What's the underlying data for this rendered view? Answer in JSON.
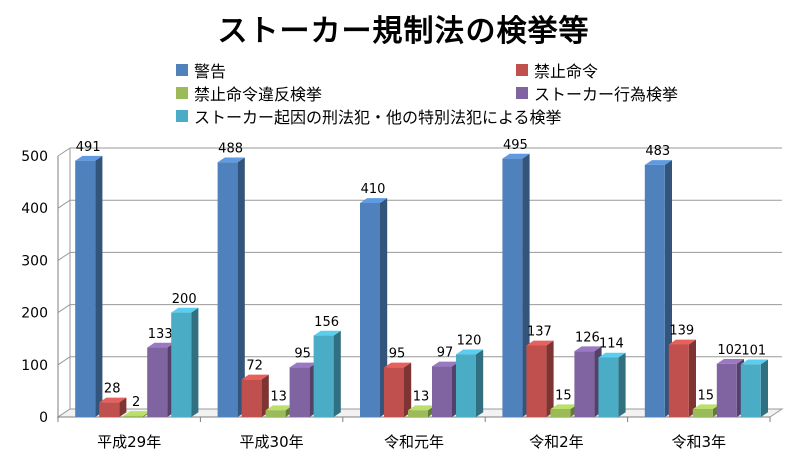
{
  "chart_data": {
    "type": "bar",
    "title": "ストーカー規制法の検挙等",
    "categories": [
      "平成29年",
      "平成30年",
      "令和元年",
      "令和2年",
      "令和3年"
    ],
    "series": [
      {
        "name": "警告",
        "color": "#4f81bd",
        "values": [
          491,
          488,
          410,
          495,
          483
        ]
      },
      {
        "name": "禁止命令",
        "color": "#c0504d",
        "values": [
          28,
          72,
          95,
          137,
          139
        ]
      },
      {
        "name": "禁止命令違反検挙",
        "color": "#9bbb59",
        "values": [
          2,
          13,
          13,
          15,
          15
        ]
      },
      {
        "name": "ストーカー行為検挙",
        "color": "#8064a2",
        "values": [
          133,
          95,
          97,
          126,
          102
        ]
      },
      {
        "name": "ストーカー起因の刑法犯・他の特別法犯による検挙",
        "color": "#4bacc6",
        "values": [
          200,
          156,
          120,
          114,
          101
        ]
      }
    ],
    "yticks": [
      0,
      100,
      200,
      300,
      400,
      500
    ],
    "ylim": [
      0,
      500
    ],
    "xlabel": "",
    "ylabel": "",
    "grid": true,
    "legend": "top"
  }
}
